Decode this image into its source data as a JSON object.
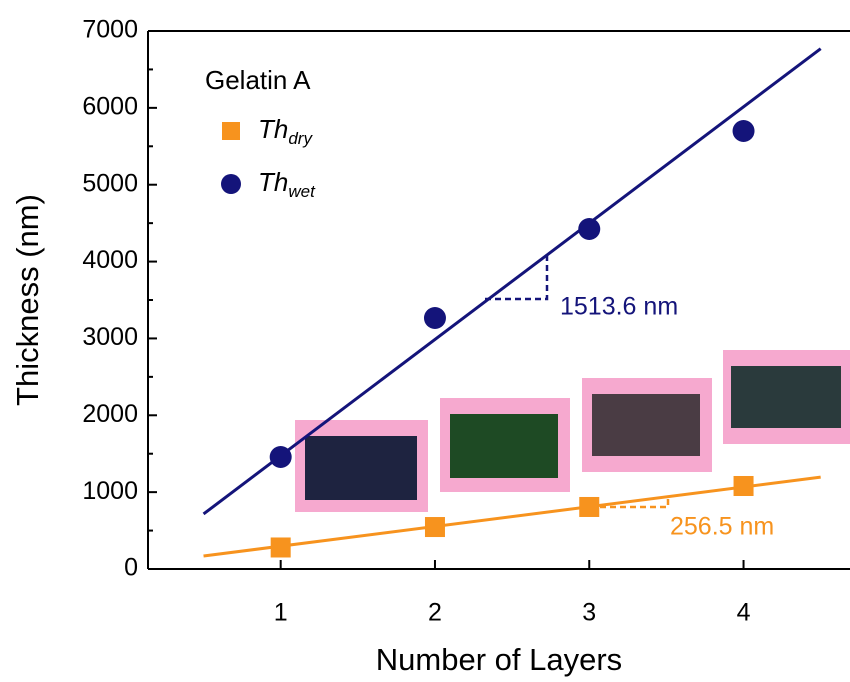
{
  "chart_data": {
    "type": "scatter",
    "xlabel": "Number of Layers",
    "ylabel": "Thickness (nm)",
    "xlim": [
      0.14,
      4.69
    ],
    "ylim": [
      0,
      7000
    ],
    "xticks": [
      1,
      2,
      3,
      4
    ],
    "yticks": [
      0,
      1000,
      2000,
      3000,
      4000,
      5000,
      6000,
      7000
    ],
    "legend_title": "Gelatin A",
    "series": [
      {
        "name": "Th",
        "subscript": "dry",
        "marker": "square",
        "color": "#f7931e",
        "x": [
          1,
          2,
          3,
          4
        ],
        "values": [
          280,
          546,
          807,
          1080
        ]
      },
      {
        "name": "Th",
        "subscript": "wet",
        "marker": "circle",
        "color": "#14147a",
        "x": [
          1,
          2,
          3,
          4
        ],
        "values": [
          1457,
          3266,
          4424,
          5699
        ]
      }
    ],
    "fits": [
      {
        "color": "#f7931e",
        "x": [
          0.5,
          4.5
        ],
        "values": [
          169,
          1195
        ],
        "annotation": "256.5 nm"
      },
      {
        "color": "#14147a",
        "x": [
          0.5,
          4.5
        ],
        "values": [
          716,
          6770
        ],
        "annotation": "1513.6 nm"
      }
    ]
  }
}
